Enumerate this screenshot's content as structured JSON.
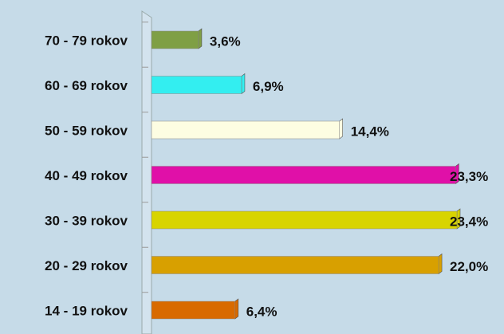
{
  "chart_data": {
    "type": "bar",
    "orientation": "horizontal",
    "categories": [
      "70 - 79 rokov",
      "60 - 69 rokov",
      "50 - 59 rokov",
      "40 - 49 rokov",
      "30 - 39 rokov",
      "20 - 29 rokov",
      "14 - 19 rokov"
    ],
    "values": [
      3.6,
      6.9,
      14.4,
      23.3,
      23.4,
      22.0,
      6.4
    ],
    "value_labels": [
      "3,6%",
      "6,9%",
      "14,4%",
      "23,3%",
      "23,4%",
      "22,0%",
      "6,4%"
    ],
    "colors": [
      "#7f9f45",
      "#33eef0",
      "#fdfde2",
      "#e010a8",
      "#d8d400",
      "#d8a000",
      "#d86a00"
    ]
  }
}
